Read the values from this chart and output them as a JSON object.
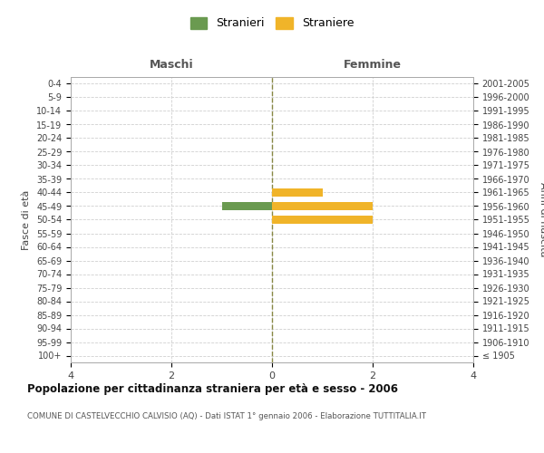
{
  "age_groups": [
    "100+",
    "95-99",
    "90-94",
    "85-89",
    "80-84",
    "75-79",
    "70-74",
    "65-69",
    "60-64",
    "55-59",
    "50-54",
    "45-49",
    "40-44",
    "35-39",
    "30-34",
    "25-29",
    "20-24",
    "15-19",
    "10-14",
    "5-9",
    "0-4"
  ],
  "birth_years": [
    "≤ 1905",
    "1906-1910",
    "1911-1915",
    "1916-1920",
    "1921-1925",
    "1926-1930",
    "1931-1935",
    "1936-1940",
    "1941-1945",
    "1946-1950",
    "1951-1955",
    "1956-1960",
    "1961-1965",
    "1966-1970",
    "1971-1975",
    "1976-1980",
    "1981-1985",
    "1986-1990",
    "1991-1995",
    "1996-2000",
    "2001-2005"
  ],
  "males": [
    0,
    0,
    0,
    0,
    0,
    0,
    0,
    0,
    0,
    0,
    0,
    1,
    0,
    0,
    0,
    0,
    0,
    0,
    0,
    0,
    0
  ],
  "females": [
    0,
    0,
    0,
    0,
    0,
    0,
    0,
    0,
    0,
    0,
    2,
    2,
    1,
    0,
    0,
    0,
    0,
    0,
    0,
    0,
    0
  ],
  "xlim": 4,
  "male_color": "#6a9a50",
  "female_color": "#f0b429",
  "title": "Popolazione per cittadinanza straniera per età e sesso - 2006",
  "subtitle": "COMUNE DI CASTELVECCHIO CALVISIO (AQ) - Dati ISTAT 1° gennaio 2006 - Elaborazione TUTTITALIA.IT",
  "legend_male": "Stranieri",
  "legend_female": "Straniere",
  "left_header": "Maschi",
  "right_header": "Femmine",
  "ylabel_left": "Fasce di età",
  "ylabel_right": "Anni di nascita",
  "background_color": "#ffffff",
  "grid_color": "#d0d0d0",
  "axis_line_color": "#aaaaaa",
  "center_line_color": "#888844"
}
